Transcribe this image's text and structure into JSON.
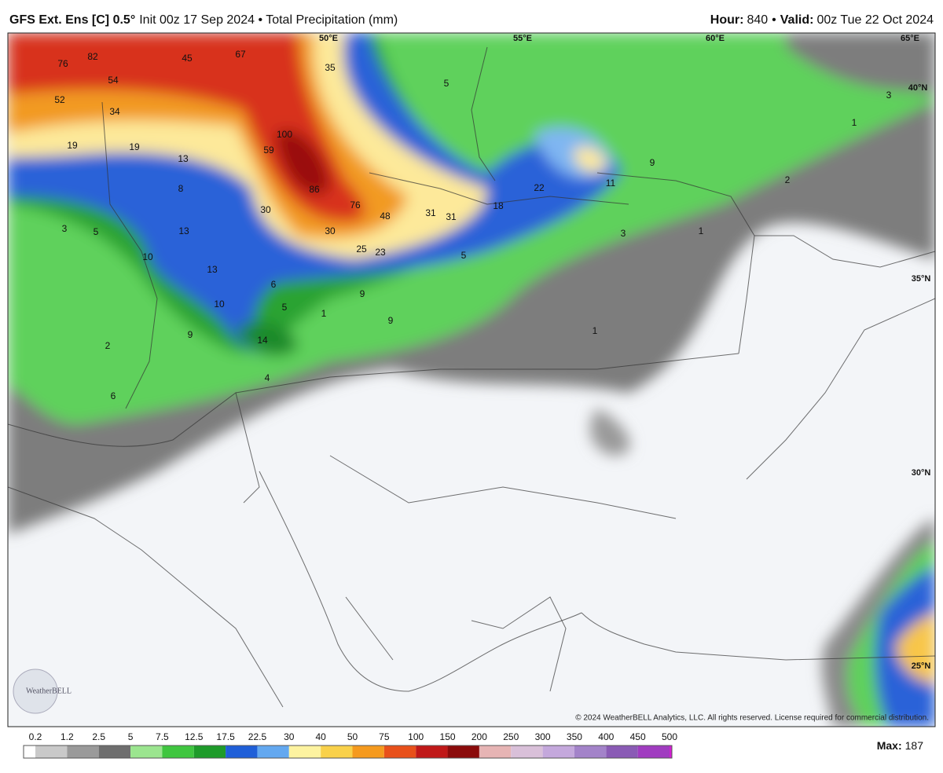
{
  "header": {
    "title": "GFS Ext. Ens [C] 0.5°",
    "subtitle": "Init 00z 17 Sep 2024 • Total Precipitation (mm)",
    "hour_label": "Hour:",
    "hour": 840,
    "separator": "•",
    "valid_label": "Valid:",
    "valid": "00z Tue 22 Oct 2024"
  },
  "map": {
    "grid_labels": [
      "50°E",
      "55°E",
      "60°E",
      "65°E",
      "40°N",
      "35°N",
      "30°N",
      "25°N"
    ],
    "precip_labels": [
      76,
      82,
      45,
      67,
      54,
      35,
      5,
      52,
      34,
      1,
      3,
      19,
      19,
      13,
      100,
      59,
      9,
      11,
      22,
      2,
      8,
      86,
      18,
      76,
      30,
      31,
      48,
      31,
      3,
      5,
      13,
      30,
      1,
      3,
      25,
      23,
      5,
      10,
      13,
      6,
      9,
      10,
      5,
      1,
      9,
      1,
      9,
      14,
      2,
      4,
      6
    ],
    "copyright": "© 2024 WeatherBELL Analytics, LLC. All rights reserved. License required for commercial distribution.",
    "logo": "WeatherBELL"
  },
  "legend": {
    "values": [
      0.2,
      1.2,
      2.5,
      5,
      7.5,
      12.5,
      17.5,
      22.5,
      30,
      40,
      50,
      75,
      100,
      150,
      200,
      250,
      300,
      350,
      400,
      450,
      500
    ],
    "colors": [
      "#ffffff",
      "#c9c9c9",
      "#9a9a9a",
      "#6e6e6e",
      "#9be58f",
      "#3fc63f",
      "#1e9b2a",
      "#1f5fd8",
      "#63a8f0",
      "#fdf3a0",
      "#f9d14a",
      "#f59a1e",
      "#e8501a",
      "#c01818",
      "#8b0b0b",
      "#e6b4b4",
      "#d9c0d9",
      "#c4a8dc",
      "#a383c9",
      "#8a5bb5",
      "#a03cc0",
      "#d21ed2"
    ],
    "max_label": "Max:",
    "max": 187
  }
}
